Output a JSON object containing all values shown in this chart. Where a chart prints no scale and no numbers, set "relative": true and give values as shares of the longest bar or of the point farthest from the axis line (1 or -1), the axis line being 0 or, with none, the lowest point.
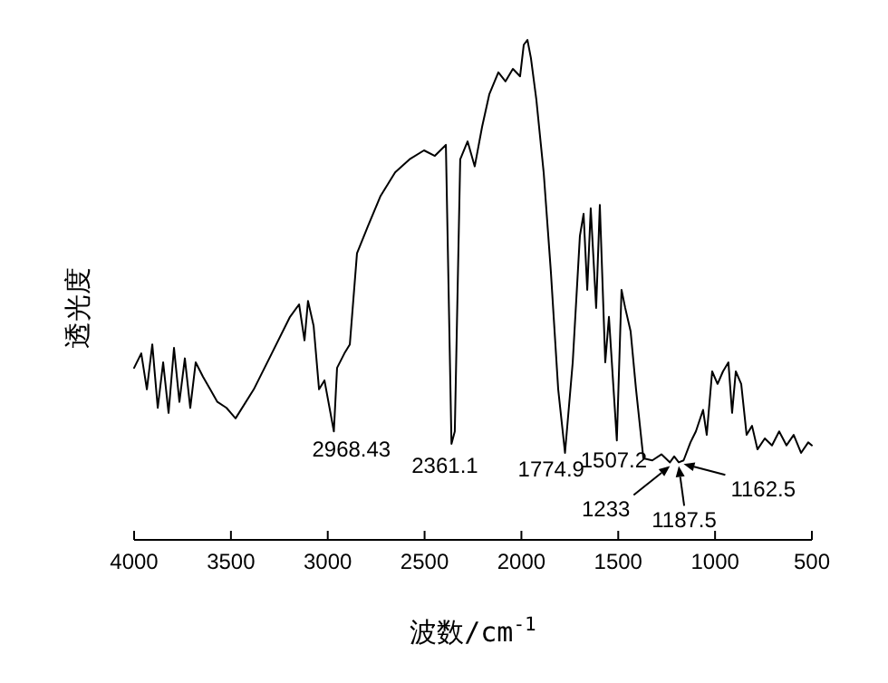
{
  "chart_data": {
    "type": "line",
    "relative": true,
    "xlabel": "波数/cm$^{-1}$",
    "ylabel": "透光度",
    "xlim": [
      4000,
      500
    ],
    "xticks": [
      4000,
      3500,
      3000,
      2500,
      2000,
      1500,
      1000,
      500
    ],
    "marker": "none",
    "line_style": "solid",
    "x": [
      4000,
      3963,
      3934,
      3906,
      3878,
      3850,
      3822,
      3794,
      3766,
      3738,
      3710,
      3682,
      3644,
      3607,
      3570,
      3523,
      3476,
      3382,
      3289,
      3195,
      3148,
      3120,
      3102,
      3073,
      3045,
      3017,
      2968.43,
      2952,
      2914,
      2886,
      2849,
      2793,
      2727,
      2652,
      2578,
      2503,
      2447,
      2390,
      2361.1,
      2344,
      2316,
      2278,
      2241,
      2203,
      2166,
      2119,
      2082,
      2044,
      2007,
      1988,
      1969,
      1951,
      1923,
      1885,
      1848,
      1810,
      1774.9,
      1735,
      1698,
      1679,
      1660,
      1642,
      1614,
      1595,
      1567,
      1548,
      1507.2,
      1483,
      1464,
      1436,
      1408,
      1370,
      1324,
      1277,
      1233,
      1211,
      1187.5,
      1162.5,
      1127,
      1099,
      1062,
      1043,
      1015,
      987,
      959,
      931,
      912,
      893,
      865,
      837,
      809,
      781,
      743,
      706,
      669,
      631,
      594,
      556,
      519,
      500
    ],
    "series": [
      {
        "color": "#000000",
        "values": [
          0.344,
          0.373,
          0.301,
          0.391,
          0.264,
          0.355,
          0.254,
          0.384,
          0.276,
          0.363,
          0.264,
          0.355,
          0.326,
          0.301,
          0.276,
          0.264,
          0.243,
          0.301,
          0.373,
          0.446,
          0.471,
          0.399,
          0.478,
          0.428,
          0.301,
          0.319,
          0.217,
          0.344,
          0.373,
          0.391,
          0.573,
          0.627,
          0.688,
          0.735,
          0.761,
          0.779,
          0.768,
          0.79,
          0.192,
          0.217,
          0.761,
          0.797,
          0.747,
          0.826,
          0.891,
          0.935,
          0.917,
          0.942,
          0.927,
          0.99,
          1.0,
          0.964,
          0.881,
          0.735,
          0.537,
          0.301,
          0.174,
          0.355,
          0.608,
          0.652,
          0.5,
          0.663,
          0.464,
          0.67,
          0.355,
          0.446,
          0.199,
          0.5,
          0.464,
          0.417,
          0.301,
          0.163,
          0.159,
          0.171,
          0.155,
          0.167,
          0.155,
          0.159,
          0.195,
          0.217,
          0.26,
          0.21,
          0.337,
          0.312,
          0.337,
          0.355,
          0.254,
          0.337,
          0.312,
          0.21,
          0.228,
          0.181,
          0.203,
          0.189,
          0.217,
          0.189,
          0.21,
          0.174,
          0.195,
          0.189
        ]
      }
    ],
    "annotations": [
      {
        "text": "2968.43",
        "x": 2968.43,
        "y": 0.217
      },
      {
        "text": "2361.1",
        "x": 2361.1,
        "y": 0.192
      },
      {
        "text": "1774.9",
        "x": 1774.9,
        "y": 0.174
      },
      {
        "text": "1507.2",
        "x": 1507.2,
        "y": 0.199
      },
      {
        "text": "1233",
        "x": 1233,
        "y": 0.155
      },
      {
        "text": "1187.5",
        "x": 1187.5,
        "y": 0.155
      },
      {
        "text": "1162.5",
        "x": 1162.5,
        "y": 0.159
      }
    ]
  }
}
